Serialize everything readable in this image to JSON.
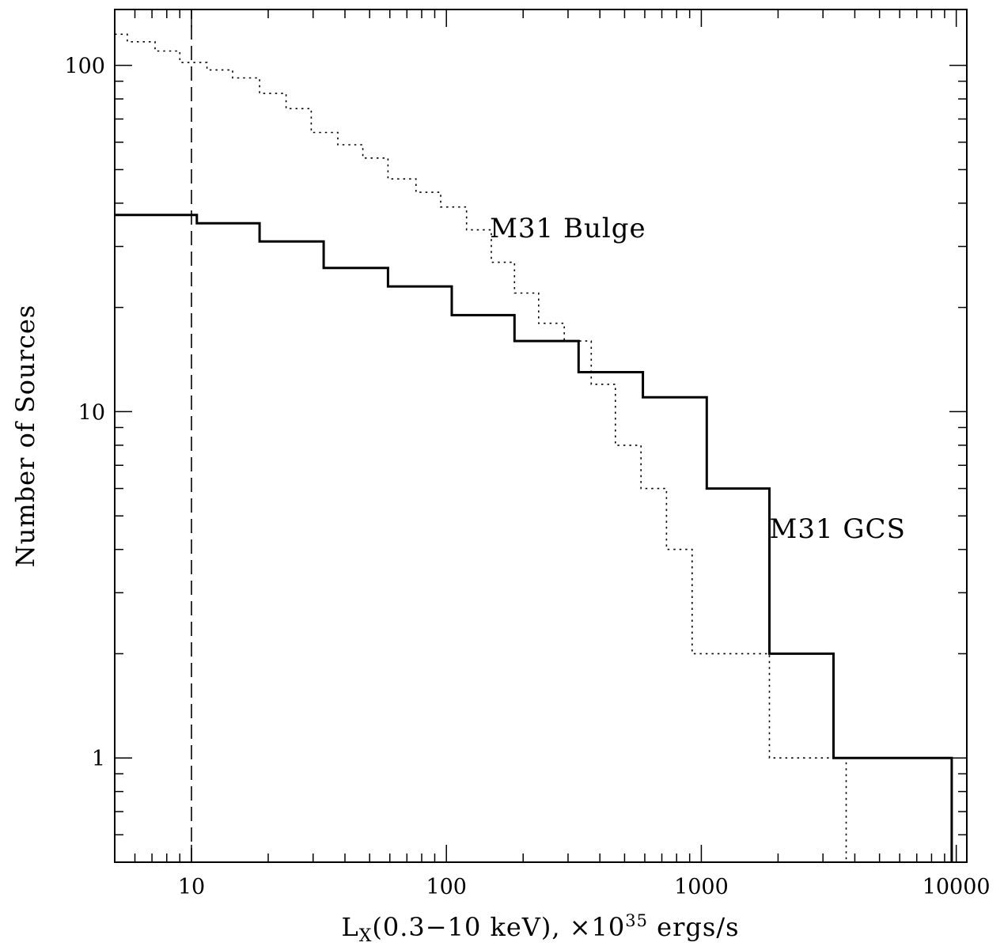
{
  "chart_data": {
    "type": "line",
    "step": true,
    "x_scale": "log",
    "y_scale": "log",
    "xlim": [
      5,
      11000
    ],
    "ylim": [
      0.5,
      145
    ],
    "xlabel": {
      "base": "L",
      "sub": "X",
      "mid": "(0.3−10 keV), ×10",
      "sup": "35",
      "tail": " ergs/s"
    },
    "ylabel": "Number of Sources",
    "x_ticks": {
      "major": [
        10,
        100,
        1000,
        10000
      ],
      "labels": [
        "10",
        "100",
        "1000",
        "10000"
      ]
    },
    "y_ticks": {
      "major": [
        1,
        10,
        100
      ],
      "labels": [
        "1",
        "10",
        "100"
      ]
    },
    "series": [
      {
        "name": "M31 GCS",
        "style": "solid",
        "color": "#000000",
        "points": [
          [
            5,
            37
          ],
          [
            10.5,
            37
          ],
          [
            10.5,
            35
          ],
          [
            18.5,
            35
          ],
          [
            18.5,
            31
          ],
          [
            33,
            31
          ],
          [
            33,
            26
          ],
          [
            59,
            26
          ],
          [
            59,
            23
          ],
          [
            105,
            23
          ],
          [
            105,
            19
          ],
          [
            185,
            19
          ],
          [
            185,
            16
          ],
          [
            330,
            16
          ],
          [
            330,
            13
          ],
          [
            590,
            13
          ],
          [
            590,
            11
          ],
          [
            1050,
            11
          ],
          [
            1050,
            6
          ],
          [
            1850,
            6
          ],
          [
            1850,
            2
          ],
          [
            3300,
            2
          ],
          [
            3300,
            1
          ],
          [
            9600,
            1
          ],
          [
            9600,
            0.5
          ]
        ]
      },
      {
        "name": "M31 Bulge",
        "style": "dotted",
        "color": "#000000",
        "points": [
          [
            5,
            123
          ],
          [
            5.6,
            123
          ],
          [
            5.6,
            117
          ],
          [
            7.2,
            117
          ],
          [
            7.2,
            110
          ],
          [
            9,
            110
          ],
          [
            9,
            102
          ],
          [
            11.5,
            102
          ],
          [
            11.5,
            97
          ],
          [
            14.5,
            97
          ],
          [
            14.5,
            92
          ],
          [
            18.5,
            92
          ],
          [
            18.5,
            83
          ],
          [
            23.5,
            83
          ],
          [
            23.5,
            75
          ],
          [
            29.5,
            75
          ],
          [
            29.5,
            64
          ],
          [
            37.5,
            64
          ],
          [
            37.5,
            59
          ],
          [
            47,
            59
          ],
          [
            47,
            54
          ],
          [
            59,
            54
          ],
          [
            59,
            47
          ],
          [
            76,
            47
          ],
          [
            76,
            43
          ],
          [
            95,
            43
          ],
          [
            95,
            39
          ],
          [
            120,
            39
          ],
          [
            120,
            33.5
          ],
          [
            150,
            33.5
          ],
          [
            150,
            27
          ],
          [
            185,
            27
          ],
          [
            185,
            22
          ],
          [
            230,
            22
          ],
          [
            230,
            18
          ],
          [
            290,
            18
          ],
          [
            290,
            16
          ],
          [
            370,
            16
          ],
          [
            370,
            12
          ],
          [
            460,
            12
          ],
          [
            460,
            8
          ],
          [
            580,
            8
          ],
          [
            580,
            6
          ],
          [
            730,
            6
          ],
          [
            730,
            4
          ],
          [
            920,
            4
          ],
          [
            920,
            2
          ],
          [
            1850,
            2
          ],
          [
            1850,
            1
          ],
          [
            3700,
            1
          ],
          [
            3700,
            0.5
          ]
        ]
      },
      {
        "name": "",
        "style": "dashed",
        "color": "#000000",
        "points": [
          [
            10,
            0.5
          ],
          [
            10,
            145
          ]
        ]
      }
    ],
    "annotations": [
      {
        "text": "M31 Bulge",
        "x": 148,
        "y": 34,
        "anchor": "start"
      },
      {
        "text": "M31 GCS",
        "x": 1850,
        "y": 4.6,
        "anchor": "start"
      }
    ],
    "grid": false,
    "legend": "none"
  }
}
